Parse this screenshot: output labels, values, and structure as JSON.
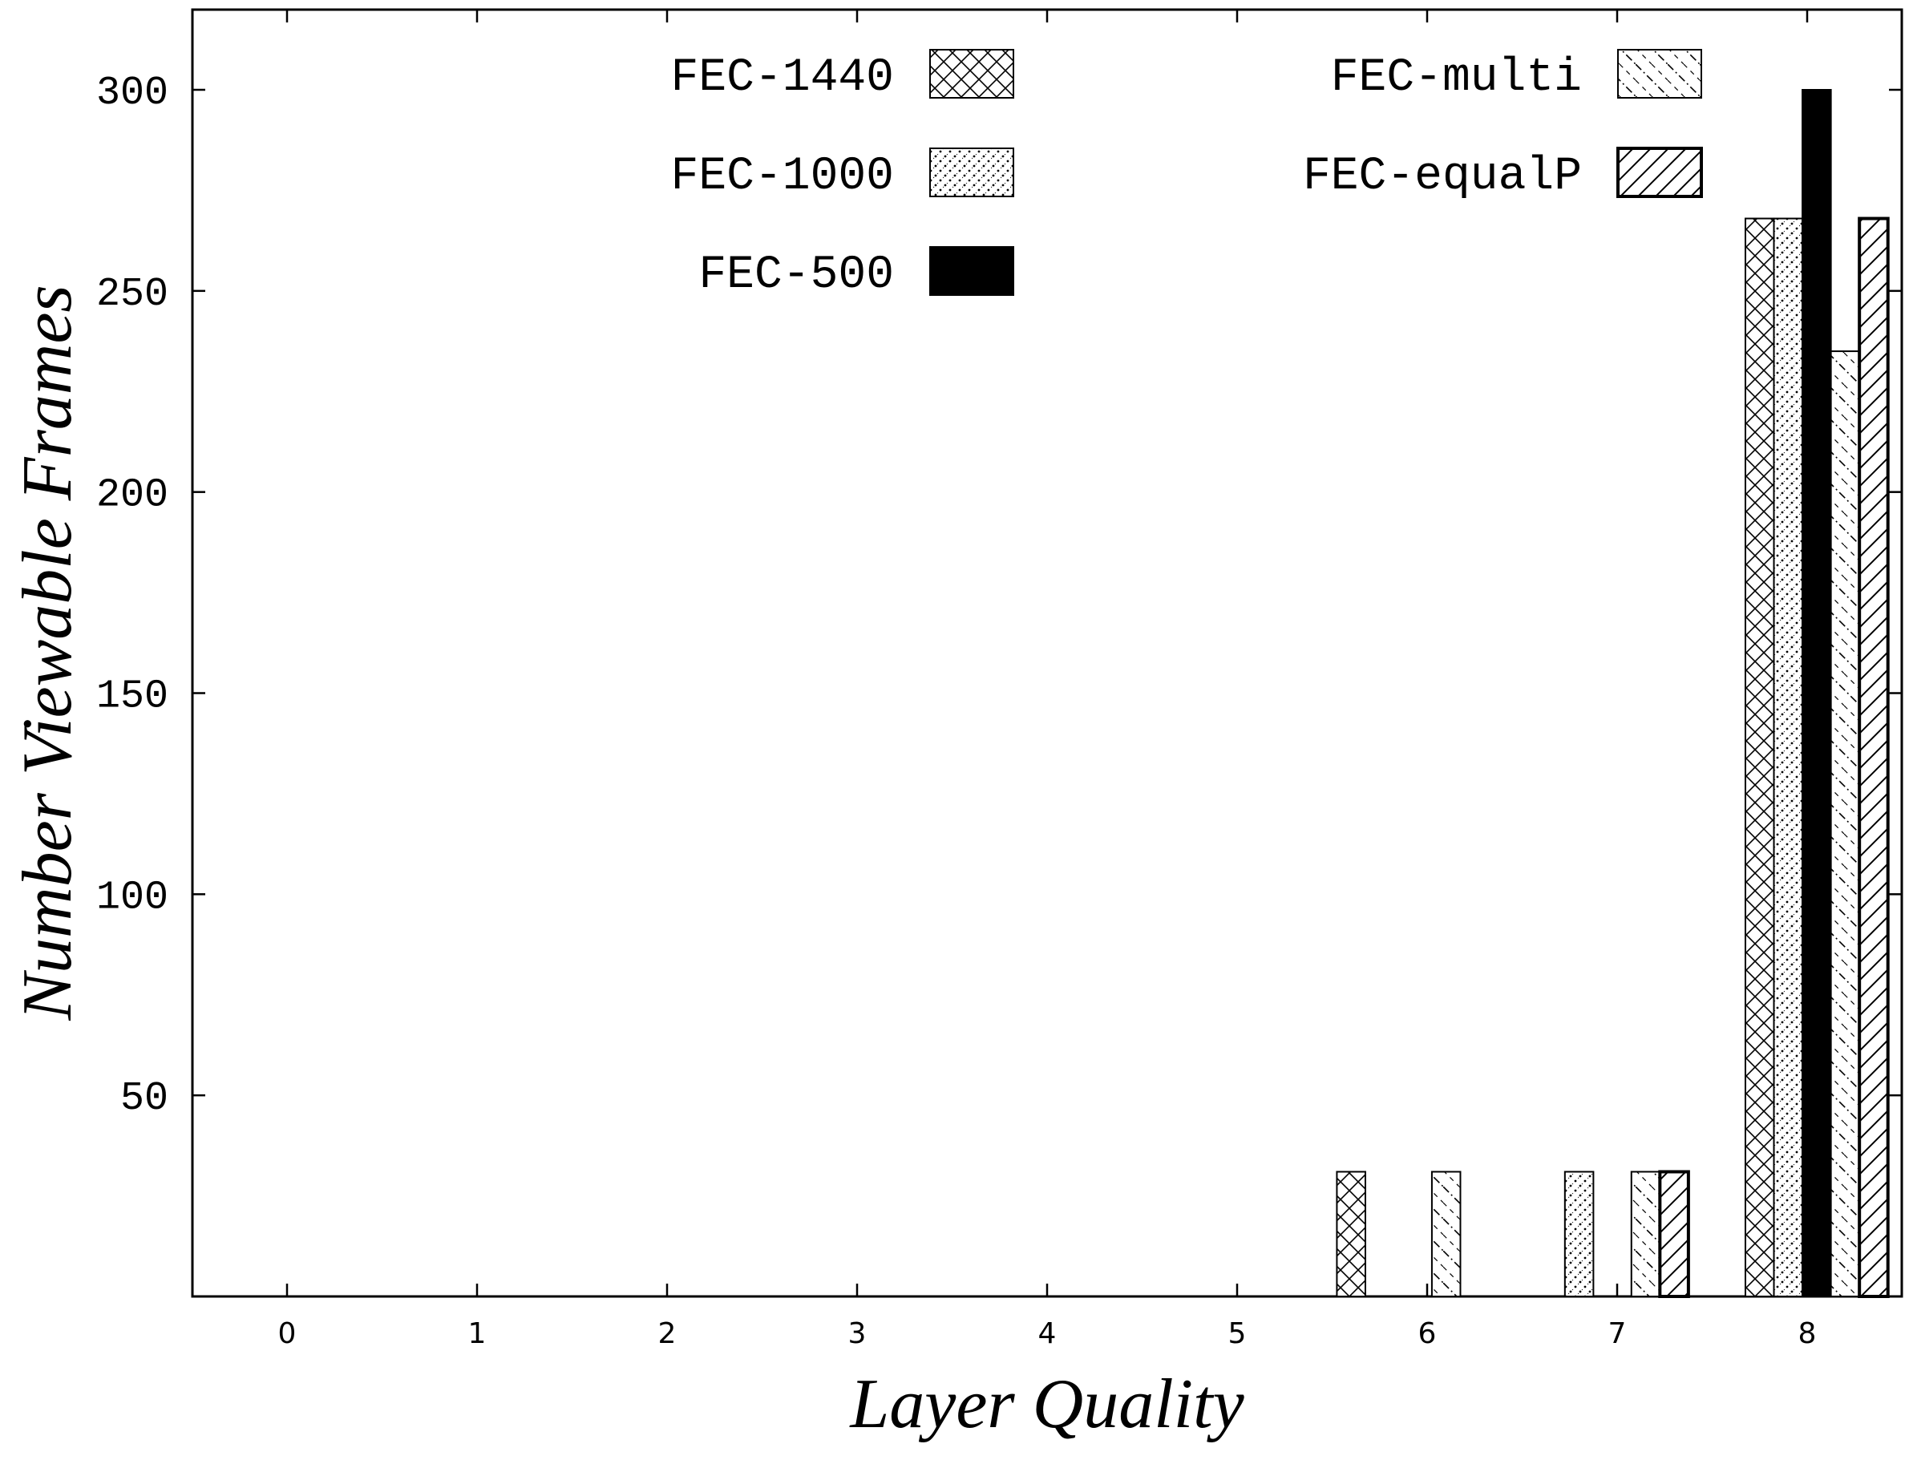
{
  "chart_data": {
    "type": "bar",
    "title": "",
    "xlabel": "Layer Quality",
    "ylabel": "Number Viewable Frames",
    "x_ticks": [
      "0",
      "1",
      "2",
      "3",
      "4",
      "5",
      "6",
      "7",
      "8"
    ],
    "y_ticks": [
      "50",
      "100",
      "150",
      "200",
      "250",
      "300"
    ],
    "ylim": [
      0,
      320
    ],
    "xlim": [
      -0.5,
      8.5
    ],
    "grid": false,
    "legend_position": "top",
    "series": [
      {
        "name": "FEC-1440",
        "pattern": "crosshatch",
        "bars": [
          {
            "x": 5.6,
            "y": 31
          },
          {
            "x": 7.75,
            "y": 268
          }
        ]
      },
      {
        "name": "FEC-1000",
        "pattern": "dotted",
        "bars": [
          {
            "x": 6.8,
            "y": 31
          },
          {
            "x": 7.9,
            "y": 268
          }
        ]
      },
      {
        "name": "FEC-500",
        "pattern": "solid-black",
        "bars": [
          {
            "x": 8.05,
            "y": 300
          }
        ]
      },
      {
        "name": "FEC-multi",
        "pattern": "dash-dot-diagonal",
        "bars": [
          {
            "x": 6.1,
            "y": 31
          },
          {
            "x": 7.15,
            "y": 31
          },
          {
            "x": 8.2,
            "y": 235
          }
        ]
      },
      {
        "name": "FEC-equalP",
        "pattern": "diagonal",
        "bars": [
          {
            "x": 7.3,
            "y": 31
          },
          {
            "x": 8.35,
            "y": 268
          }
        ]
      }
    ],
    "bar_width": 0.15
  }
}
